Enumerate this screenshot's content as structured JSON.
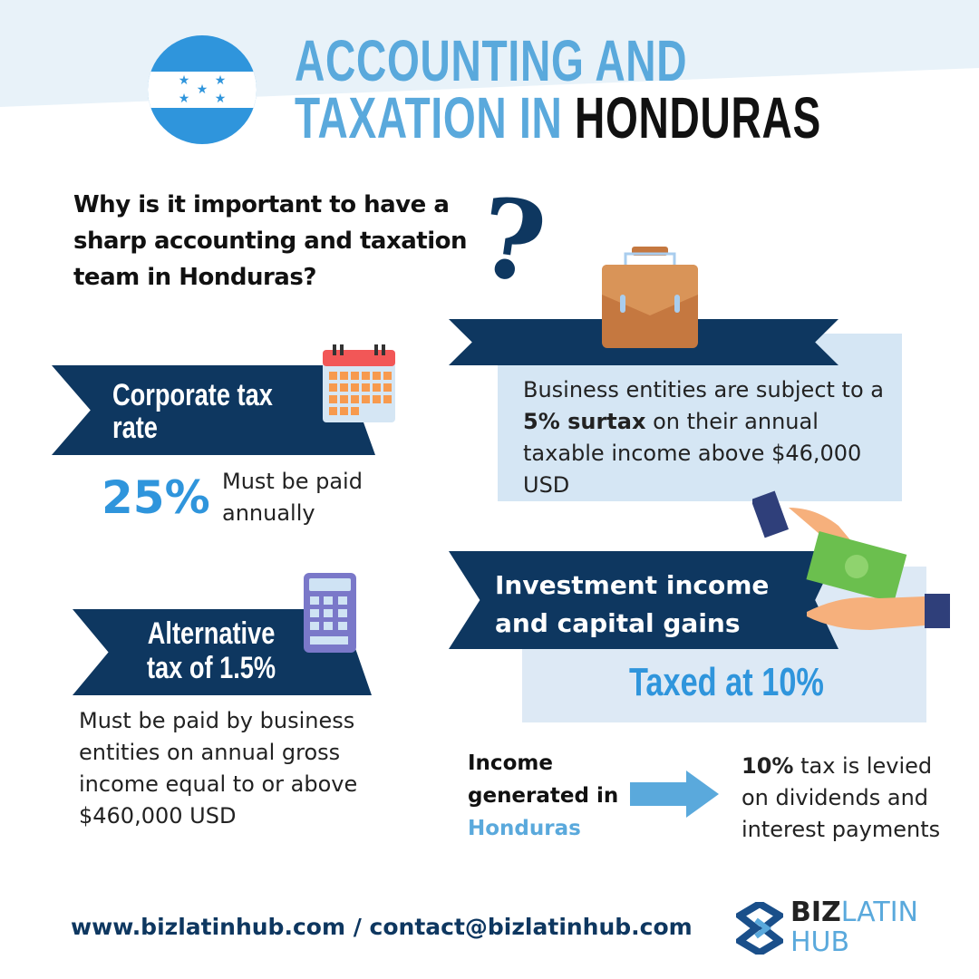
{
  "header": {
    "title_line1": "ACCOUNTING AND",
    "title_line2_prefix": "TAXATION IN ",
    "title_line2_highlight": "HONDURAS"
  },
  "question": "Why is it important to have a sharp accounting and taxation team in Honduras?",
  "corporate": {
    "label": "Corporate tax rate",
    "rate": "25%",
    "note": "Must be paid annually"
  },
  "surtax": {
    "pre": "Business entities are subject to a ",
    "bold": "5% surtax",
    "post": " on their annual taxable income above $46,000 USD"
  },
  "alternative": {
    "label_line1": "Alternative",
    "label_line2": "tax of 1.5%",
    "note": "Must be paid by business entities on annual gross income equal to or above $460,000 USD"
  },
  "investment": {
    "label": "Investment income and capital gains",
    "taxed": "Taxed at 10%"
  },
  "income": {
    "line1": "Income generated in",
    "line2": "Honduras",
    "bold": "10%",
    "rest": " tax is levied on dividends and interest payments"
  },
  "footer": {
    "contact": "www.bizlatinhub.com / contact@bizlatinhub.com",
    "logo_biz": "BIZ",
    "logo_latin": "LATIN",
    "logo_hub": "HUB"
  },
  "colors": {
    "navy": "#0e3760",
    "accent_blue": "#5aa9dc",
    "light_box": "#d5e6f4",
    "flag_blue": "#2f95dc"
  }
}
